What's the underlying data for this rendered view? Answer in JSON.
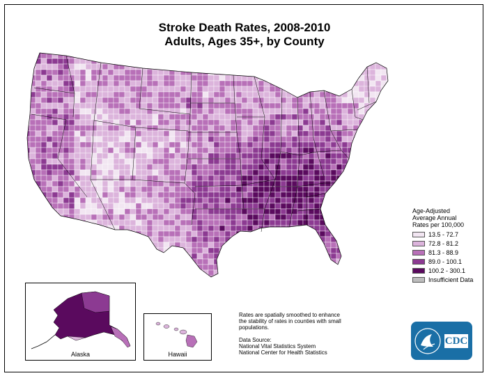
{
  "title": {
    "line1": "Stroke Death Rates, 2008-2010",
    "line2": "Adults, Ages 35+, by County"
  },
  "legend": {
    "heading": [
      "Age-Adjusted",
      "Average Annual",
      "Rates per 100,000"
    ],
    "classes": [
      {
        "label": "13.5 - 72.7",
        "color": "#f2e6f2"
      },
      {
        "label": "72.8 - 81.2",
        "color": "#dcb4dc"
      },
      {
        "label": "81.3 - 88.9",
        "color": "#b870b8"
      },
      {
        "label": "89.0 - 100.1",
        "color": "#8c3a92"
      },
      {
        "label": "100.2 - 300.1",
        "color": "#5a0a5e"
      },
      {
        "label": "Insufficient Data",
        "color": "#bdbdbd"
      }
    ]
  },
  "insets": {
    "alaska": "Alaska",
    "hawaii": "Hawaii"
  },
  "notes": {
    "smoothing": [
      "Rates are spatially smoothed to enhance",
      "the stability of rates in counties with small",
      "populations."
    ],
    "source_heading": "Data Source:",
    "sources": [
      "National Vital Statistics System",
      "National Center for Health Statistics"
    ]
  },
  "logo": {
    "text": "CDC",
    "color": "#1a6fa6"
  }
}
